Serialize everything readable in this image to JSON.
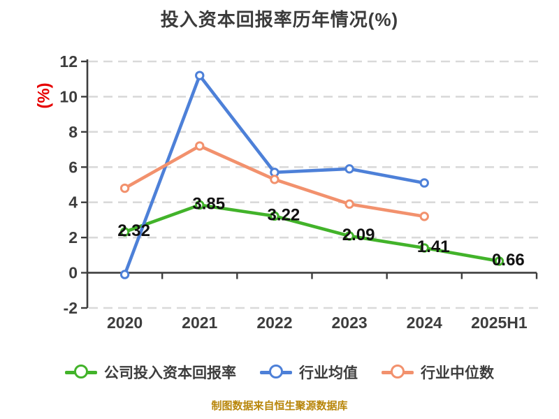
{
  "title": "投入资本回报率历年情况(%)",
  "ylabel": "(%)",
  "footer": "制图数据来自恒生聚源数据库",
  "colors": {
    "company": "#42b32a",
    "industry_avg": "#4d80d8",
    "industry_median": "#f2916d",
    "ylabel": "#e60000",
    "grid": "#d9d9d9",
    "axis": "#3d3d3d",
    "tick_text": "#3d3d3d",
    "data_label": "#111111",
    "footer": "#b8860b",
    "background": "#ffffff"
  },
  "chart_data": {
    "type": "line",
    "title": "投入资本回报率历年情况(%)",
    "xlabel": "",
    "ylabel": "(%)",
    "categories": [
      "2020",
      "2021",
      "2022",
      "2023",
      "2024",
      "2025H1"
    ],
    "ylim": [
      -2,
      12
    ],
    "yticks": [
      -2,
      0,
      2,
      4,
      6,
      8,
      10,
      12
    ],
    "grid": "horizontal-dashed",
    "legend_position": "bottom",
    "series": [
      {
        "name": "公司投入资本回报率",
        "color": "#42b32a",
        "values": [
          2.32,
          3.85,
          3.22,
          2.09,
          1.41,
          0.66
        ],
        "labels": [
          "2.32",
          "3.85",
          "3.22",
          "2.09",
          "1.41",
          "0.66"
        ],
        "show_labels": true
      },
      {
        "name": "行业均值",
        "color": "#4d80d8",
        "values": [
          -0.1,
          11.2,
          5.7,
          5.9,
          5.1,
          null
        ],
        "show_labels": false
      },
      {
        "name": "行业中位数",
        "color": "#f2916d",
        "values": [
          4.8,
          7.2,
          5.3,
          3.9,
          3.2,
          null
        ],
        "show_labels": false
      }
    ]
  }
}
